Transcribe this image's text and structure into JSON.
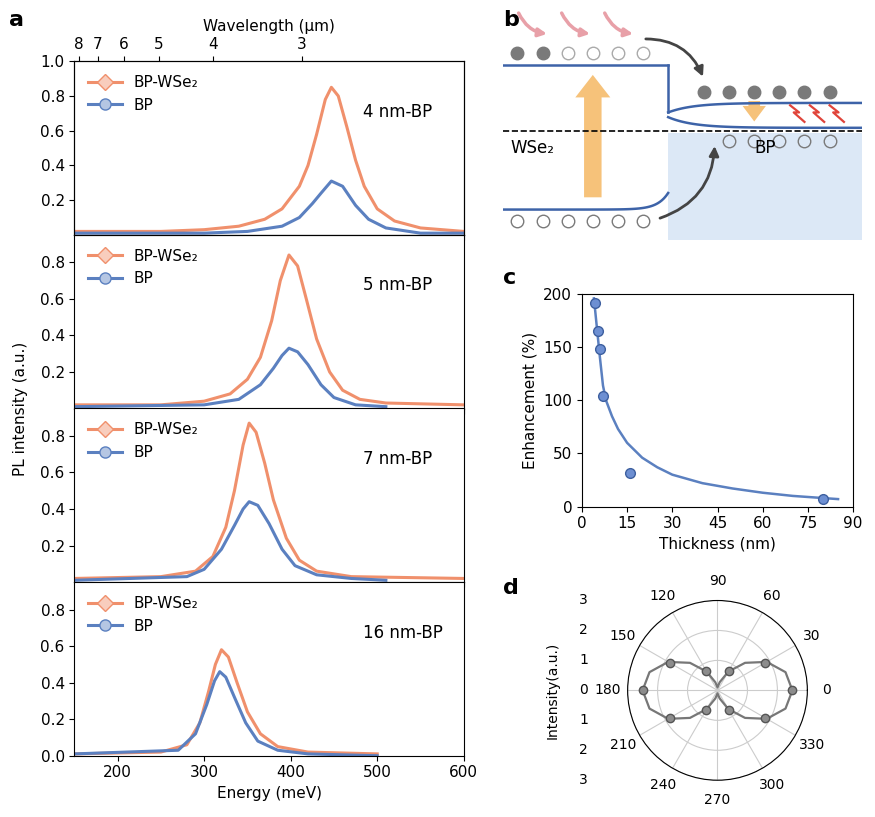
{
  "chart_data": [
    {
      "type": "line",
      "panel": "a",
      "xlabel": "Energy (meV)",
      "ylabel": "PL intensity (a.u.)",
      "x2label": "Wavelength (μm)",
      "x2ticks": [
        {
          "value": 155,
          "label": "8"
        },
        {
          "value": 177,
          "label": "7"
        },
        {
          "value": 207,
          "label": "6"
        },
        {
          "value": 248,
          "label": "5"
        },
        {
          "value": 310,
          "label": "4"
        },
        {
          "value": 413,
          "label": "3"
        }
      ],
      "xlim": [
        150,
        600
      ],
      "xticks": [
        200,
        300,
        400,
        500,
        600
      ],
      "subplots": [
        {
          "text": "4 nm-BP",
          "ylim": [
            0,
            1.0
          ],
          "yticks": [
            0.2,
            0.4,
            0.6,
            0.8,
            1.0
          ],
          "legend": "upper left",
          "tick_labels": "y",
          "series": [
            {
              "name": "BP-WSe₂",
              "color": "#f0906c",
              "marker": "diamond",
              "x": [
                150,
                250,
                300,
                340,
                370,
                390,
                410,
                420,
                430,
                440,
                447,
                455,
                465,
                475,
                485,
                500,
                520,
                550,
                600
              ],
              "values": [
                0.02,
                0.02,
                0.03,
                0.05,
                0.09,
                0.15,
                0.28,
                0.4,
                0.58,
                0.78,
                0.85,
                0.8,
                0.62,
                0.43,
                0.28,
                0.15,
                0.08,
                0.04,
                0.02
              ]
            },
            {
              "name": "BP",
              "color": "#5b80c0",
              "marker": "circle",
              "x": [
                150,
                300,
                350,
                390,
                410,
                425,
                435,
                447,
                460,
                475,
                490,
                510,
                550,
                600
              ],
              "values": [
                0.01,
                0.01,
                0.02,
                0.05,
                0.1,
                0.18,
                0.24,
                0.31,
                0.28,
                0.17,
                0.09,
                0.04,
                0.01,
                0.01
              ]
            }
          ]
        },
        {
          "text": "5 nm-BP",
          "ylim": [
            0,
            0.95
          ],
          "yticks": [
            0.2,
            0.4,
            0.6,
            0.8
          ],
          "legend": "upper left",
          "tick_labels": "y",
          "series": [
            {
              "name": "BP-WSe₂",
              "color": "#f0906c",
              "marker": "diamond",
              "x": [
                150,
                250,
                300,
                330,
                350,
                365,
                378,
                388,
                398,
                408,
                418,
                430,
                445,
                460,
                480,
                510,
                600
              ],
              "values": [
                0.02,
                0.02,
                0.04,
                0.08,
                0.16,
                0.28,
                0.48,
                0.7,
                0.84,
                0.78,
                0.6,
                0.38,
                0.2,
                0.1,
                0.05,
                0.03,
                0.02
              ]
            },
            {
              "name": "BP",
              "color": "#5b80c0",
              "marker": "circle",
              "x": [
                150,
                300,
                340,
                365,
                380,
                390,
                398,
                408,
                420,
                435,
                450,
                475,
                510
              ],
              "values": [
                0.01,
                0.02,
                0.05,
                0.13,
                0.22,
                0.29,
                0.33,
                0.31,
                0.24,
                0.13,
                0.06,
                0.02,
                0.01
              ]
            }
          ]
        },
        {
          "text": "7 nm-BP",
          "ylim": [
            0,
            0.95
          ],
          "yticks": [
            0.2,
            0.4,
            0.6,
            0.8
          ],
          "legend": "upper left",
          "tick_labels": "y",
          "series": [
            {
              "name": "BP-WSe₂",
              "color": "#f0906c",
              "marker": "diamond",
              "x": [
                150,
                250,
                290,
                310,
                325,
                335,
                345,
                352,
                360,
                370,
                380,
                395,
                410,
                430,
                470,
                600
              ],
              "values": [
                0.02,
                0.03,
                0.06,
                0.14,
                0.3,
                0.5,
                0.75,
                0.87,
                0.82,
                0.65,
                0.45,
                0.24,
                0.12,
                0.06,
                0.03,
                0.02
              ]
            },
            {
              "name": "BP",
              "color": "#5b80c0",
              "marker": "circle",
              "x": [
                150,
                280,
                300,
                320,
                335,
                345,
                352,
                362,
                375,
                390,
                405,
                430,
                470,
                510
              ],
              "values": [
                0.01,
                0.03,
                0.07,
                0.18,
                0.31,
                0.4,
                0.44,
                0.42,
                0.32,
                0.18,
                0.09,
                0.04,
                0.02,
                0.01
              ]
            }
          ]
        },
        {
          "text": "16 nm-BP",
          "ylim": [
            0,
            0.95
          ],
          "yticks": [
            0.0,
            0.2,
            0.4,
            0.6,
            0.8
          ],
          "legend": "upper left",
          "series": [
            {
              "name": "BP-WSe₂",
              "color": "#f0906c",
              "marker": "diamond",
              "x": [
                150,
                250,
                280,
                295,
                305,
                313,
                320,
                328,
                338,
                350,
                365,
                385,
                420,
                500
              ],
              "values": [
                0.01,
                0.02,
                0.06,
                0.18,
                0.35,
                0.5,
                0.58,
                0.54,
                0.4,
                0.24,
                0.12,
                0.05,
                0.02,
                0.01
              ]
            },
            {
              "name": "BP",
              "color": "#5b80c0",
              "marker": "circle",
              "x": [
                150,
                270,
                290,
                303,
                312,
                318,
                325,
                335,
                348,
                362,
                385,
                420,
                500
              ],
              "values": [
                0.01,
                0.03,
                0.12,
                0.28,
                0.41,
                0.46,
                0.43,
                0.32,
                0.18,
                0.08,
                0.03,
                0.01,
                0.0
              ]
            }
          ]
        }
      ]
    },
    {
      "type": "scatter",
      "panel": "c",
      "xlabel": "Thickness (nm)",
      "ylabel": "Enhancement (%)",
      "xlim": [
        0,
        90
      ],
      "xticks": [
        0,
        15,
        30,
        45,
        60,
        75,
        90
      ],
      "ylim": [
        0,
        200
      ],
      "yticks": [
        0,
        50,
        100,
        150,
        200
      ],
      "series": [
        {
          "type": "line",
          "color": "#5b80c0",
          "x": [
            4,
            5,
            6,
            7,
            8,
            10,
            12,
            15,
            20,
            25,
            30,
            40,
            50,
            60,
            70,
            80,
            85
          ],
          "values": [
            196,
            168,
            140,
            114,
            100,
            85,
            73,
            60,
            46,
            37,
            30,
            22,
            17,
            13,
            10,
            8,
            7
          ]
        },
        {
          "type": "scatter",
          "color": "#6d8fd2",
          "marker": "circle",
          "x": [
            4.5,
            5.2,
            6,
            7,
            16,
            80
          ],
          "values": [
            192,
            165,
            148,
            104,
            32,
            7
          ]
        }
      ]
    },
    {
      "type": "polar",
      "panel": "d",
      "ylabel": "Intensity(a.u.)",
      "xticks": [
        0,
        30,
        60,
        90,
        120,
        150,
        180,
        210,
        240,
        270,
        300,
        330
      ],
      "ylim": [
        0,
        3
      ],
      "yticks": [
        0,
        1,
        2,
        3
      ],
      "series": [
        {
          "type": "line",
          "color": "#777777",
          "x": [
            0,
            15,
            30,
            45,
            60,
            75,
            90,
            105,
            120,
            135,
            150,
            165,
            180,
            195,
            210,
            225,
            240,
            255,
            270,
            285,
            300,
            315,
            330,
            345,
            360
          ],
          "values": [
            2.5,
            2.35,
            1.9,
            1.3,
            0.72,
            0.28,
            0.1,
            0.28,
            0.72,
            1.3,
            1.9,
            2.35,
            2.5,
            2.35,
            1.9,
            1.3,
            0.72,
            0.28,
            0.1,
            0.28,
            0.72,
            1.3,
            1.9,
            2.35,
            2.5
          ]
        },
        {
          "type": "scatter",
          "color": "#8c8c8c",
          "marker": "circle",
          "x": [
            0,
            30,
            60,
            120,
            150,
            180,
            210,
            240,
            300,
            330
          ],
          "values": [
            2.5,
            1.85,
            0.75,
            0.75,
            1.85,
            2.5,
            1.85,
            0.75,
            0.75,
            1.85
          ]
        }
      ]
    }
  ],
  "diagram": {
    "panel": "b",
    "labels": [
      "WSe₂",
      "BP"
    ]
  }
}
